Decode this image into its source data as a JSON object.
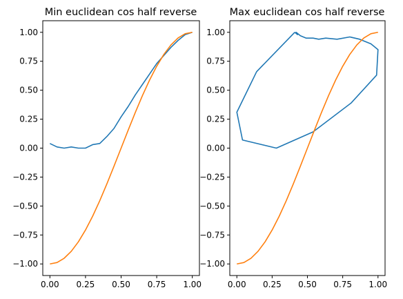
{
  "colors": {
    "series_1": "#1f77b4",
    "series_2": "#ff7f0e",
    "axes": "#000000",
    "background": "#ffffff"
  },
  "chart_data": [
    {
      "type": "line",
      "title": "Min euclidean cos half reverse",
      "xlabel": "",
      "ylabel": "",
      "xlim": [
        -0.05,
        1.05
      ],
      "ylim": [
        -1.1,
        1.1
      ],
      "xticks": [
        0.0,
        0.25,
        0.5,
        0.75,
        1.0
      ],
      "xtick_labels": [
        "0.00",
        "0.25",
        "0.50",
        "0.75",
        "1.00"
      ],
      "yticks": [
        1.0,
        0.75,
        0.5,
        0.25,
        0.0,
        -0.25,
        -0.5,
        -0.75,
        -1.0
      ],
      "ytick_labels": [
        "1.00",
        "0.75",
        "0.50",
        "0.25",
        "0.00",
        "−0.25",
        "−0.50",
        "−0.75",
        "−1.00"
      ],
      "grid": false,
      "series": [
        {
          "x": [
            0.0,
            0.05,
            0.1,
            0.15,
            0.2,
            0.25,
            0.3,
            0.35,
            0.4,
            0.45,
            0.5,
            0.55,
            0.6,
            0.65,
            0.7,
            0.75,
            0.8,
            0.85,
            0.9,
            0.95,
            1.0
          ],
          "y": [
            0.04,
            0.01,
            0.0,
            0.01,
            0.0,
            0.0,
            0.03,
            0.04,
            0.1,
            0.17,
            0.27,
            0.36,
            0.46,
            0.55,
            0.64,
            0.73,
            0.8,
            0.87,
            0.93,
            0.98,
            1.0
          ]
        },
        {
          "x": [
            0.0,
            0.05,
            0.1,
            0.15,
            0.2,
            0.25,
            0.3,
            0.35,
            0.4,
            0.45,
            0.5,
            0.55,
            0.6,
            0.65,
            0.7,
            0.75,
            0.8,
            0.85,
            0.9,
            0.95,
            1.0
          ],
          "y": [
            -1.0,
            -0.988,
            -0.951,
            -0.891,
            -0.809,
            -0.707,
            -0.588,
            -0.454,
            -0.309,
            -0.156,
            0.0,
            0.156,
            0.309,
            0.454,
            0.588,
            0.707,
            0.809,
            0.891,
            0.951,
            0.988,
            1.0
          ]
        }
      ]
    },
    {
      "type": "line",
      "title": "Max euclidean cos half reverse",
      "xlabel": "",
      "ylabel": "",
      "xlim": [
        -0.05,
        1.05
      ],
      "ylim": [
        -1.1,
        1.1
      ],
      "xticks": [
        0.0,
        0.25,
        0.5,
        0.75,
        1.0
      ],
      "xtick_labels": [
        "0.00",
        "0.25",
        "0.50",
        "0.75",
        "1.00"
      ],
      "yticks": [
        1.0,
        0.75,
        0.5,
        0.25,
        0.0,
        -0.25,
        -0.5,
        -0.75,
        -1.0
      ],
      "ytick_labels": [
        "1.00",
        "0.75",
        "0.50",
        "0.25",
        "0.00",
        "−0.25",
        "−0.50",
        "−0.75",
        "−1.00"
      ],
      "grid": false,
      "series": [
        {
          "x": [
            0.41,
            0.43,
            0.42,
            0.45,
            0.49,
            0.54,
            0.58,
            0.63,
            0.71,
            0.8,
            0.87,
            0.95,
            1.0,
            0.99,
            0.81,
            0.54,
            0.28,
            0.04,
            0.0,
            0.14,
            0.41
          ],
          "y": [
            1.0,
            0.98,
            1.0,
            0.97,
            0.95,
            0.95,
            0.94,
            0.95,
            0.94,
            0.96,
            0.94,
            0.9,
            0.85,
            0.63,
            0.39,
            0.14,
            0.0,
            0.07,
            0.31,
            0.66,
            1.0
          ]
        },
        {
          "x": [
            0.0,
            0.05,
            0.1,
            0.15,
            0.2,
            0.25,
            0.3,
            0.35,
            0.4,
            0.45,
            0.5,
            0.55,
            0.6,
            0.65,
            0.7,
            0.75,
            0.8,
            0.85,
            0.9,
            0.95,
            1.0
          ],
          "y": [
            -1.0,
            -0.988,
            -0.951,
            -0.891,
            -0.809,
            -0.707,
            -0.588,
            -0.454,
            -0.309,
            -0.156,
            0.0,
            0.156,
            0.309,
            0.454,
            0.588,
            0.707,
            0.809,
            0.891,
            0.951,
            0.988,
            1.0
          ]
        }
      ]
    }
  ]
}
